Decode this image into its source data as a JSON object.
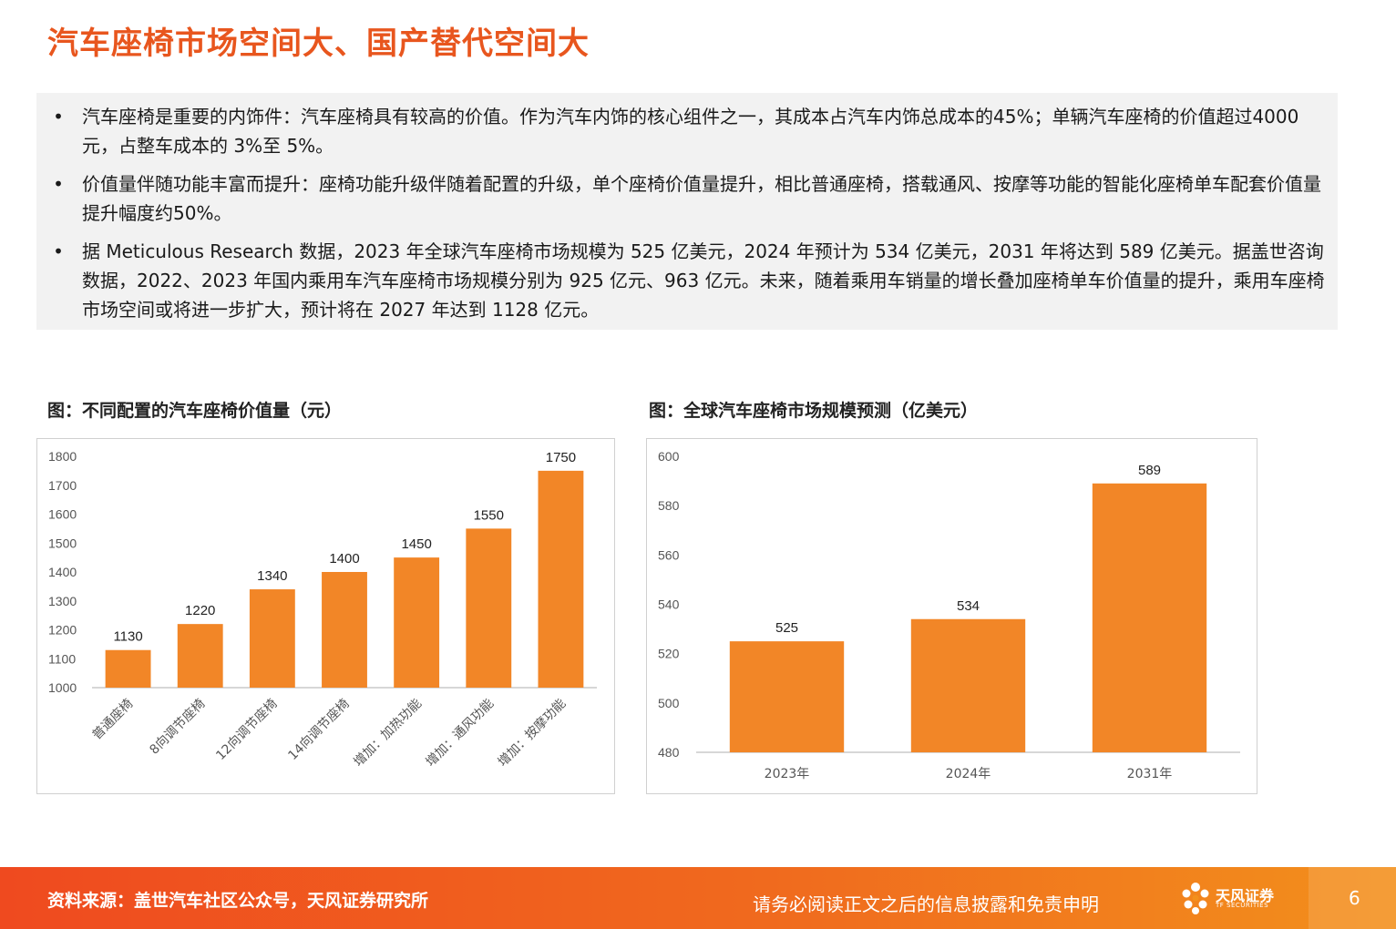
{
  "title": "汽车座椅市场空间大、国产替代空间大",
  "bullets": [
    "汽车座椅是重要的内饰件：汽车座椅具有较高的价值。作为汽车内饰的核心组件之一，其成本占汽车内饰总成本的45%；单辆汽车座椅的价值超过4000 元，占整车成本的 3%至 5%。",
    "价值量伴随功能丰富而提升：座椅功能升级伴随着配置的升级，单个座椅价值量提升，相比普通座椅，搭载通风、按摩等功能的智能化座椅单车配套价值量提升幅度约50%。",
    "据 Meticulous Research 数据，2023 年全球汽车座椅市场规模为 525 亿美元，2024 年预计为 534 亿美元，2031 年将达到 589 亿美元。据盖世咨询数据，2022、2023 年国内乘用车汽车座椅市场规模分别为 925 亿元、963 亿元。未来，随着乘用车销量的增长叠加座椅单车价值量的提升，乘用车座椅市场空间或将进一步扩大，预计将在 2027 年达到 1128 亿元。"
  ],
  "bullet_symbol": "•",
  "chart_data": [
    {
      "type": "bar",
      "title": "图：不同配置的汽车座椅价值量（元）",
      "categories": [
        "普通座椅",
        "8向调节座椅",
        "12向调节座椅",
        "14向调节座椅",
        "增加：加热功能",
        "增加：通风功能",
        "增加：按摩功能"
      ],
      "values": [
        1130,
        1220,
        1340,
        1400,
        1450,
        1550,
        1750
      ],
      "ylim": [
        1000,
        1800
      ],
      "yticks": [
        1000,
        1100,
        1200,
        1300,
        1400,
        1500,
        1600,
        1700,
        1800
      ],
      "color": "#f28627",
      "grid": false
    },
    {
      "type": "bar",
      "title": "图：全球汽车座椅市场规模预测（亿美元）",
      "categories": [
        "2023年",
        "2024年",
        "2031年"
      ],
      "values": [
        525,
        534,
        589
      ],
      "ylim": [
        480,
        600
      ],
      "yticks": [
        480,
        500,
        520,
        540,
        560,
        580,
        600
      ],
      "color": "#f28627",
      "grid": false
    }
  ],
  "footer": {
    "source": "资料来源：盖世汽车社区公众号，天风证券研究所",
    "disclaimer": "请务必阅读正文之后的信息披露和免责申明",
    "logo_text": "天风证券",
    "logo_sub": "TF SECURITIES",
    "page": "6"
  },
  "colors": {
    "accent": "#e8561e",
    "bar": "#f28627",
    "footer": "#f06a1e"
  }
}
